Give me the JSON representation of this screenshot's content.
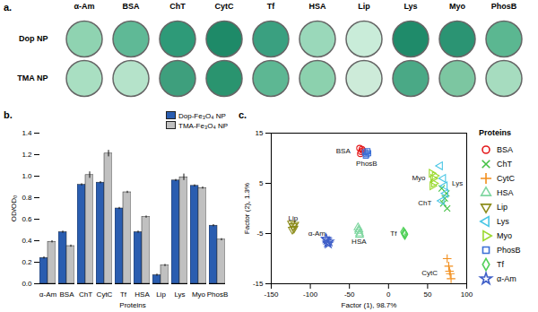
{
  "chart_data": [
    {
      "type": "wells",
      "title": "a.",
      "categories": [
        "α-Am",
        "BSA",
        "ChT",
        "CytC",
        "Tf",
        "HSA",
        "Lip",
        "Lys",
        "Myo",
        "PhosB"
      ],
      "series": [
        {
          "name": "Dop NP",
          "colors": [
            "#8fd3b1",
            "#5fb996",
            "#2e9a78",
            "#1e8a68",
            "#3aa080",
            "#9ad8ba",
            "#c9ecd9",
            "#1f8b6a",
            "#2b9473",
            "#5bb791"
          ]
        },
        {
          "name": "TMA NP",
          "colors": [
            "#a9dfc2",
            "#b5e3ca",
            "#3e9f7d",
            "#2a946f",
            "#5db793",
            "#8cd1ae",
            "#cdebd9",
            "#4aa986",
            "#7cc6a1",
            "#a6dcbf"
          ]
        }
      ]
    },
    {
      "type": "bar",
      "title": "b.",
      "categories": [
        "α-Am",
        "BSA",
        "ChT",
        "CytC",
        "Tf",
        "HSA",
        "Lip",
        "Lys",
        "Myo",
        "PhosB"
      ],
      "xlabel": "Proteins",
      "ylabel": "OD/OD₀",
      "ylim": [
        0,
        1.4
      ],
      "yticks": [
        {
          "value": 0,
          "label": "0.0"
        },
        0.2,
        0.4,
        0.6,
        0.8,
        {
          "value": 1,
          "label": "1.0"
        },
        1.2,
        1.4
      ],
      "legend": "upper right",
      "series": [
        {
          "name": "Dop-Fe₃O₄ NP",
          "color": "#2a5db0",
          "values": [
            0.24,
            0.48,
            0.92,
            0.94,
            0.7,
            0.48,
            0.08,
            0.96,
            0.91,
            0.54
          ],
          "errors": [
            0.01,
            0.01,
            0.01,
            0.01,
            0.01,
            0.01,
            0.01,
            0.01,
            0.01,
            0.01
          ]
        },
        {
          "name": "TMA-Fe₃O₄ NP",
          "color": "#c0c0c0",
          "values": [
            0.39,
            0.35,
            1.01,
            1.21,
            0.85,
            0.62,
            0.17,
            0.99,
            0.89,
            0.41
          ],
          "errors": [
            0.01,
            0.01,
            0.03,
            0.03,
            0.01,
            0.01,
            0.01,
            0.03,
            0.01,
            0.01
          ]
        }
      ]
    },
    {
      "type": "scatter",
      "title": "c.",
      "xlabel": "Factor (1), 98.7%",
      "ylabel": "Factor (2), 1.3%",
      "xlim": [
        -150,
        100
      ],
      "xticks": [
        -150,
        -100,
        -50,
        0,
        50,
        100
      ],
      "ylim": [
        -15,
        15
      ],
      "yticks": [
        -15,
        -5,
        5,
        15
      ],
      "legend": "right",
      "legend_title": "Proteins",
      "series": [
        {
          "name": "BSA",
          "color": "#e41a1c",
          "marker": "circle",
          "x": [
            -37,
            -35,
            -34,
            -36,
            -33
          ],
          "y": [
            12,
            11.3,
            11.8,
            10.9,
            11.5
          ]
        },
        {
          "name": "ChT",
          "color": "#44c044",
          "marker": "x",
          "x": [
            68,
            72,
            75,
            70,
            74
          ],
          "y": [
            4,
            2,
            0,
            1,
            3
          ]
        },
        {
          "name": "CytC",
          "color": "#f28e1c",
          "marker": "plus",
          "x": [
            75,
            77,
            79,
            80,
            78
          ],
          "y": [
            -10,
            -11.5,
            -13,
            -14,
            -12.5
          ]
        },
        {
          "name": "HSA",
          "color": "#7fd6a0",
          "marker": "triangle",
          "x": [
            -39,
            -38,
            -37,
            -38,
            -37
          ],
          "y": [
            -3.8,
            -4.5,
            -5,
            -4.2,
            -5.3
          ]
        },
        {
          "name": "Lip",
          "color": "#8c8c1a",
          "marker": "triangle-down",
          "x": [
            -124,
            -122,
            -121,
            -123,
            -120
          ],
          "y": [
            -3,
            -3.5,
            -4,
            -4.2,
            -3.2
          ]
        },
        {
          "name": "Lys",
          "color": "#49c6e5",
          "marker": "triangle-left",
          "x": [
            66,
            70,
            73,
            68,
            72
          ],
          "y": [
            8.5,
            6,
            3,
            1.5,
            4.5
          ]
        },
        {
          "name": "Myo",
          "color": "#9bd92e",
          "marker": "triangle-right",
          "x": [
            55,
            57,
            58,
            56,
            59
          ],
          "y": [
            7,
            6,
            5,
            4.5,
            6.5
          ]
        },
        {
          "name": "PhosB",
          "color": "#3b6fd6",
          "marker": "square",
          "x": [
            -30,
            -28,
            -27,
            -29,
            -26
          ],
          "y": [
            11.2,
            10.8,
            11.4,
            10.5,
            11
          ]
        },
        {
          "name": "Tf",
          "color": "#52d05a",
          "marker": "diamond",
          "x": [
            19,
            20,
            21,
            20,
            21
          ],
          "y": [
            -4.7,
            -5,
            -5.2,
            -4.9,
            -5.1
          ]
        },
        {
          "name": "α-Am",
          "color": "#3f5fc8",
          "marker": "star",
          "x": [
            -80,
            -78,
            -77,
            -79,
            -76
          ],
          "y": [
            -6,
            -6.8,
            -7,
            -6.3,
            -6.6
          ]
        }
      ]
    }
  ]
}
